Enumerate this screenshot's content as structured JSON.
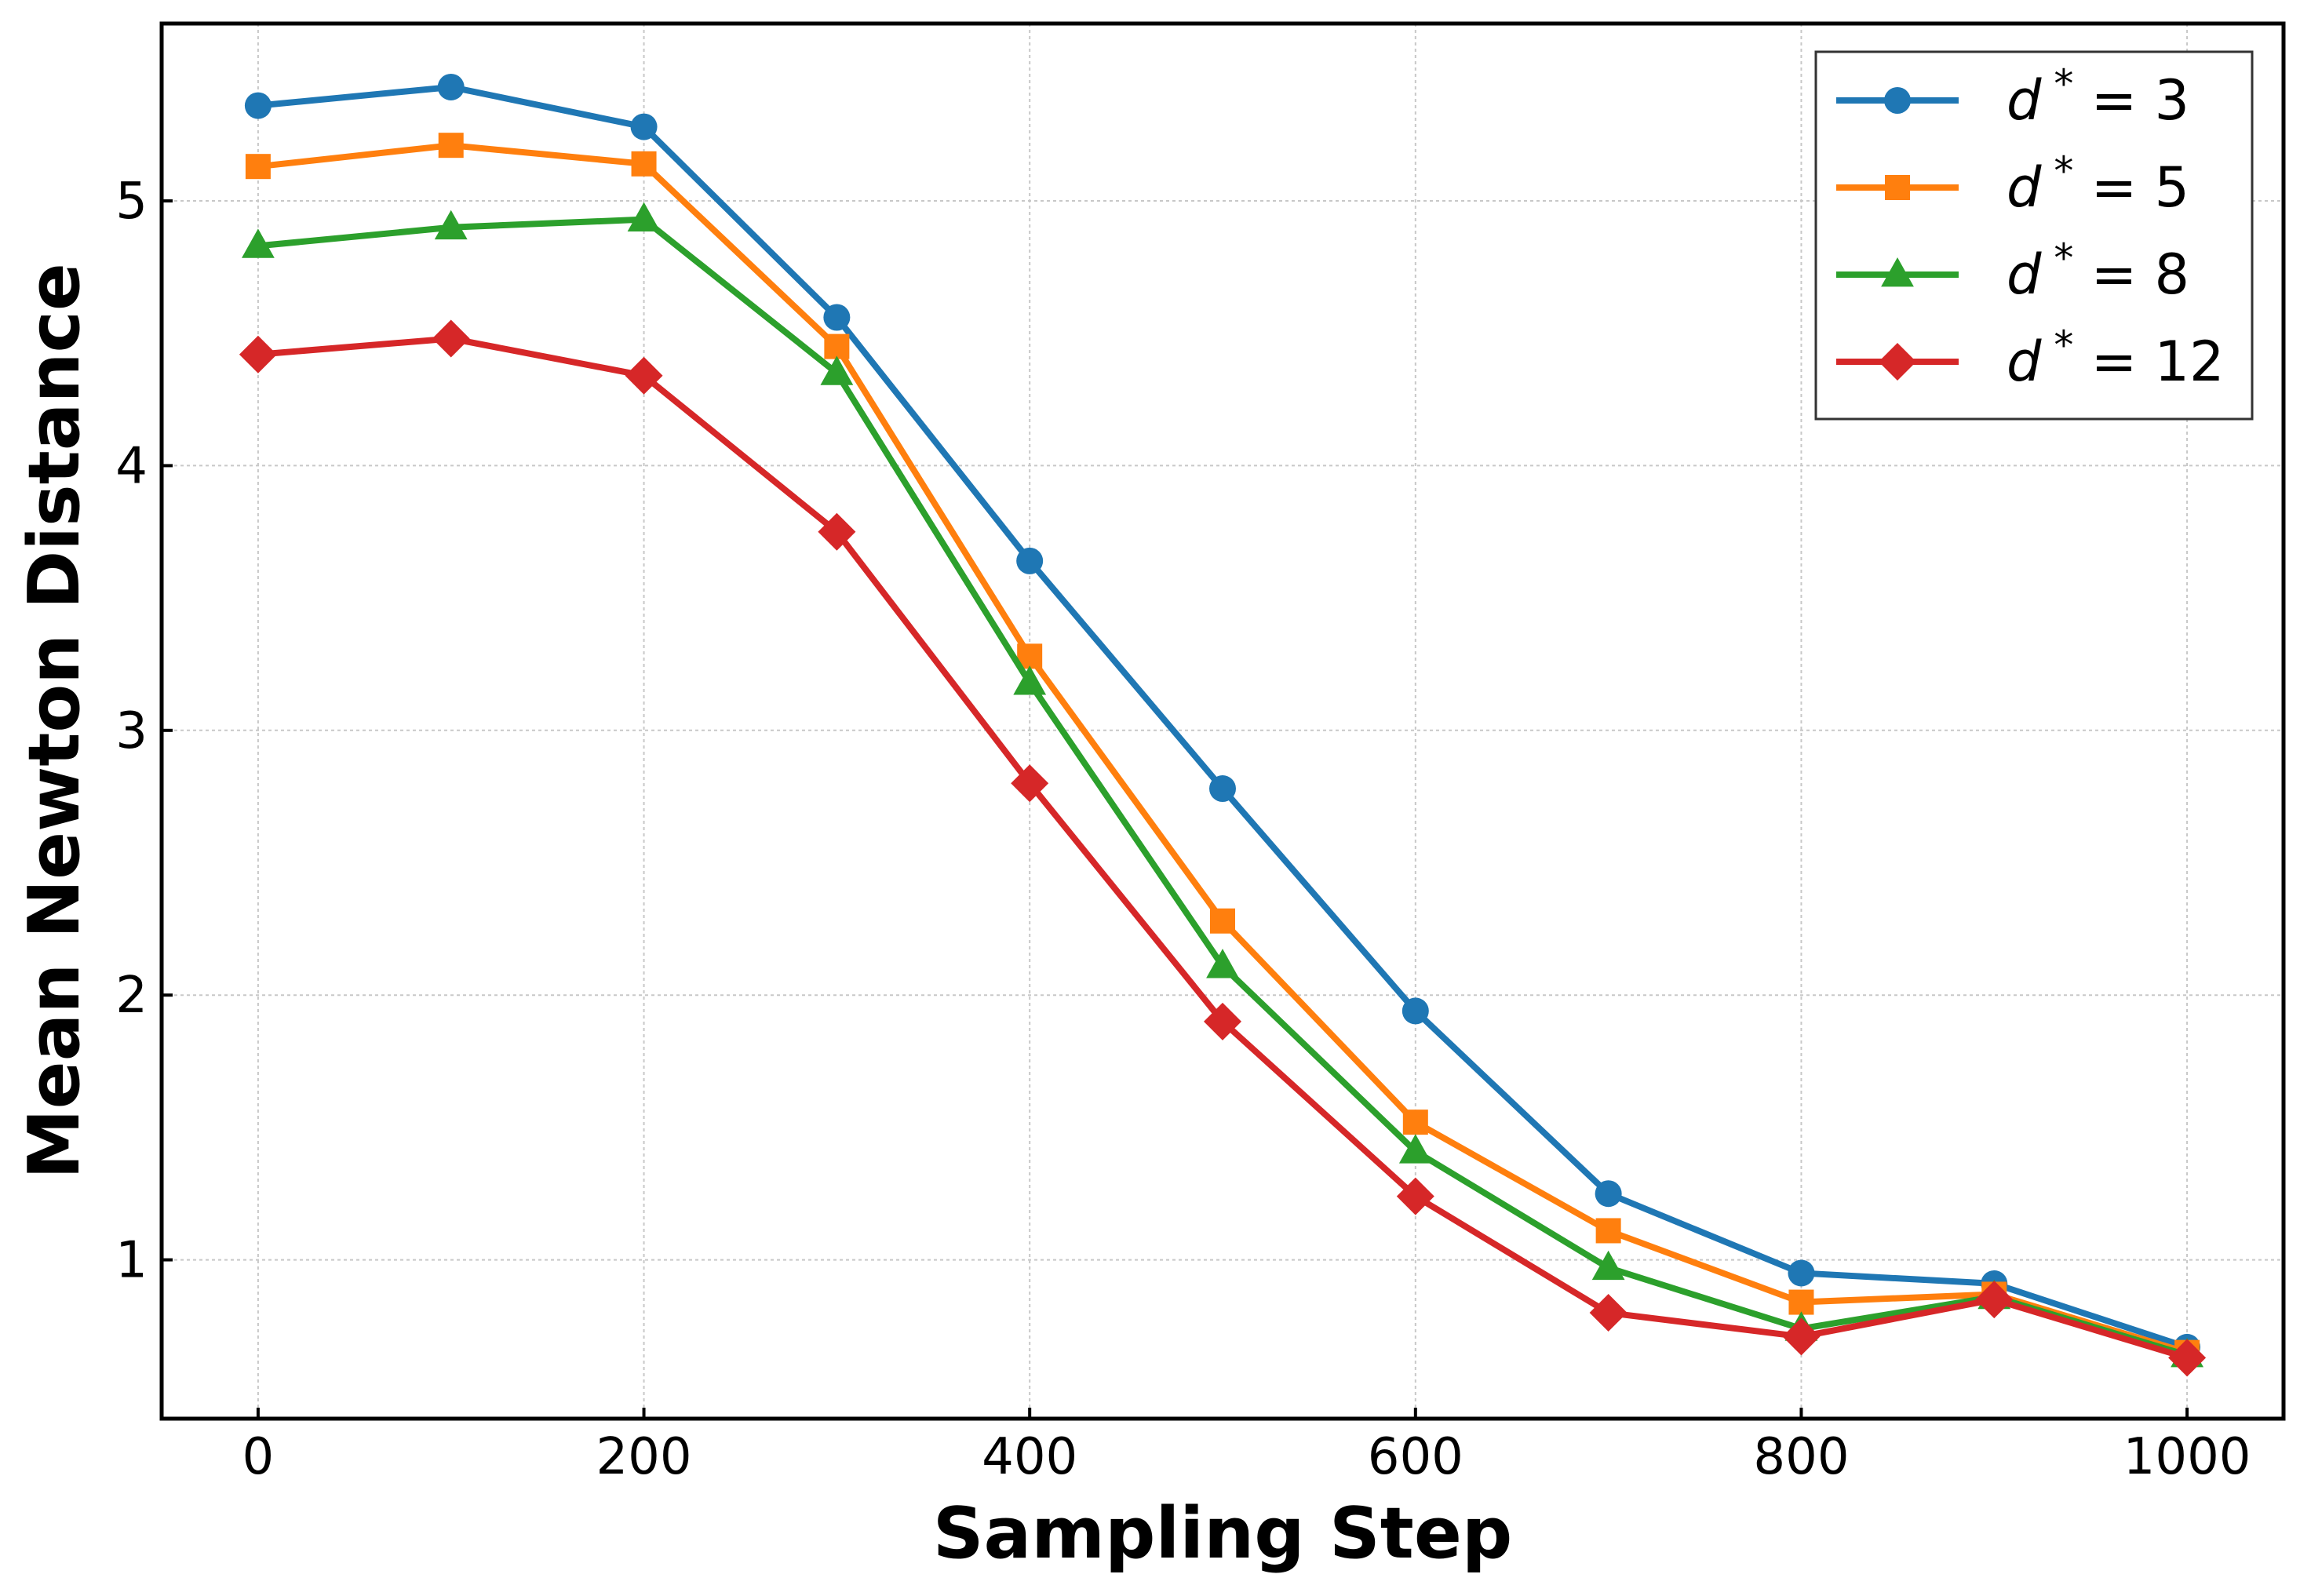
{
  "chart_data": {
    "type": "line",
    "xlabel": "Sampling Step",
    "ylabel": "Mean Newton Distance",
    "xlim": [
      -50,
      1050
    ],
    "ylim": [
      0.4,
      5.67
    ],
    "xticks": [
      0,
      200,
      400,
      600,
      800,
      1000
    ],
    "yticks": [
      1,
      2,
      3,
      4,
      5
    ],
    "grid": true,
    "legend_position": "top-right",
    "x": [
      0,
      100,
      200,
      300,
      400,
      500,
      600,
      700,
      800,
      900,
      1000
    ],
    "series": [
      {
        "name": "d* = 3",
        "legend": {
          "var": "d",
          "sup": "*",
          "rest": " = 3"
        },
        "color": "#1f77b4",
        "marker": "circle",
        "values": [
          5.36,
          5.43,
          5.28,
          4.56,
          3.64,
          2.78,
          1.94,
          1.25,
          0.95,
          0.91,
          0.67
        ]
      },
      {
        "name": "d* = 5",
        "legend": {
          "var": "d",
          "sup": "*",
          "rest": " = 5"
        },
        "color": "#ff7f0e",
        "marker": "square",
        "values": [
          5.13,
          5.21,
          5.14,
          4.45,
          3.28,
          2.28,
          1.52,
          1.11,
          0.84,
          0.87,
          0.65
        ]
      },
      {
        "name": "d* = 8",
        "legend": {
          "var": "d",
          "sup": "*",
          "rest": " = 8"
        },
        "color": "#2ca02c",
        "marker": "triangle",
        "values": [
          4.83,
          4.9,
          4.93,
          4.35,
          3.18,
          2.11,
          1.41,
          0.97,
          0.74,
          0.86,
          0.64
        ]
      },
      {
        "name": "d* = 12",
        "legend": {
          "var": "d",
          "sup": "*",
          "rest": " = 12"
        },
        "color": "#d62728",
        "marker": "diamond",
        "values": [
          4.42,
          4.48,
          4.34,
          3.75,
          2.8,
          1.9,
          1.24,
          0.8,
          0.71,
          0.85,
          0.63
        ]
      }
    ]
  }
}
